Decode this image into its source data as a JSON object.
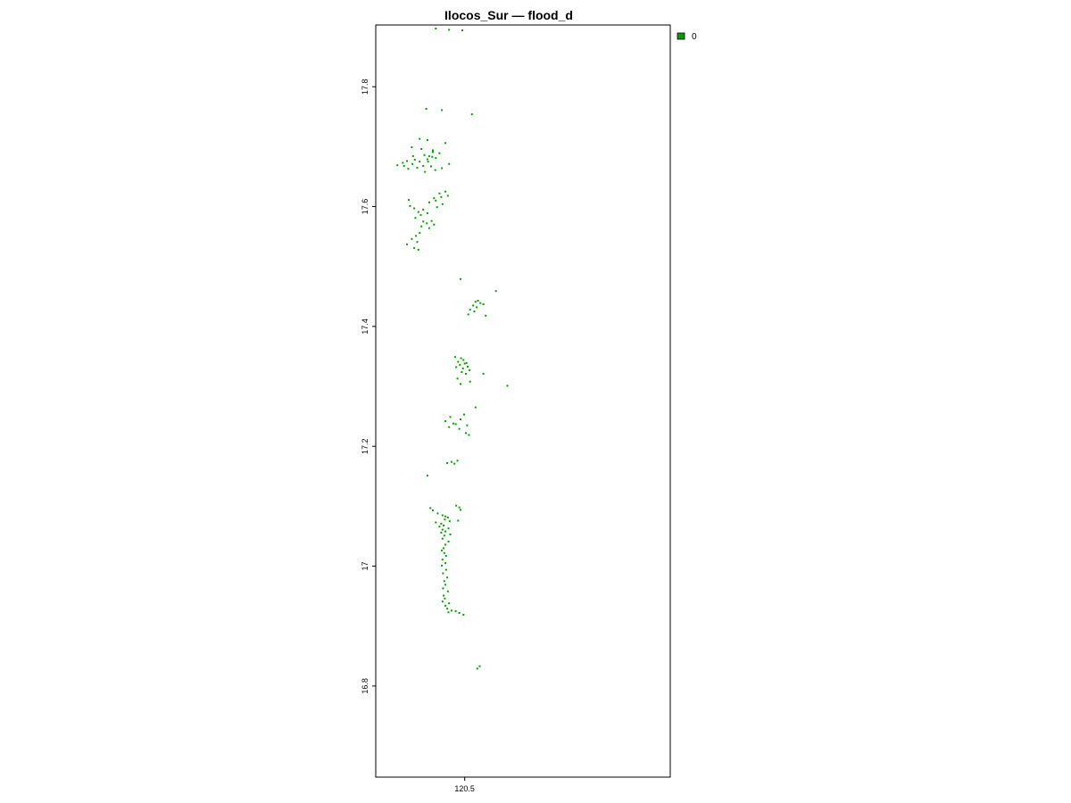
{
  "chart_data": {
    "type": "raster-map",
    "title": "Ilocos_Sur — flood_d",
    "xlabel": "",
    "ylabel": "",
    "x_ticks": [
      "120.5"
    ],
    "x_tick_values": [
      120.5
    ],
    "y_ticks": [
      "16.8",
      "17",
      "17.2",
      "17.4",
      "17.6",
      "17.8"
    ],
    "y_tick_values": [
      16.8,
      17.0,
      17.2,
      17.4,
      17.6,
      17.8
    ],
    "xlim": [
      120.352,
      120.842
    ],
    "ylim": [
      16.648,
      17.903
    ],
    "legend": {
      "position": "top-right",
      "entries": [
        {
          "label": "0",
          "color": "#00a000"
        }
      ]
    },
    "series": [
      {
        "name": "0",
        "color": "#00a000",
        "points": [
          [
            120.452,
            17.897
          ],
          [
            120.474,
            17.895
          ],
          [
            120.496,
            17.894
          ],
          [
            120.436,
            17.763
          ],
          [
            120.462,
            17.761
          ],
          [
            120.512,
            17.754
          ],
          [
            120.425,
            17.713
          ],
          [
            120.438,
            17.711
          ],
          [
            120.468,
            17.706
          ],
          [
            120.412,
            17.699
          ],
          [
            120.428,
            17.696
          ],
          [
            120.447,
            17.694
          ],
          [
            120.458,
            17.689
          ],
          [
            120.433,
            17.686
          ],
          [
            120.441,
            17.684
          ],
          [
            120.446,
            17.683
          ],
          [
            120.452,
            17.681
          ],
          [
            120.438,
            17.679
          ],
          [
            120.417,
            17.678
          ],
          [
            120.404,
            17.676
          ],
          [
            120.425,
            17.675
          ],
          [
            120.397,
            17.673
          ],
          [
            120.413,
            17.671
          ],
          [
            120.474,
            17.671
          ],
          [
            120.388,
            17.669
          ],
          [
            120.431,
            17.668
          ],
          [
            120.444,
            17.667
          ],
          [
            120.421,
            17.665
          ],
          [
            120.406,
            17.663
          ],
          [
            120.451,
            17.661
          ],
          [
            120.434,
            17.658
          ],
          [
            120.462,
            17.664
          ],
          [
            120.447,
            17.691
          ],
          [
            120.439,
            17.675
          ],
          [
            120.414,
            17.684
          ],
          [
            120.399,
            17.668
          ],
          [
            120.468,
            17.625
          ],
          [
            120.472,
            17.618
          ],
          [
            120.461,
            17.616
          ],
          [
            120.449,
            17.614
          ],
          [
            120.452,
            17.61
          ],
          [
            120.441,
            17.607
          ],
          [
            120.463,
            17.604
          ],
          [
            120.407,
            17.611
          ],
          [
            120.409,
            17.601
          ],
          [
            120.416,
            17.597
          ],
          [
            120.431,
            17.595
          ],
          [
            120.423,
            17.591
          ],
          [
            120.438,
            17.589
          ],
          [
            120.427,
            17.586
          ],
          [
            120.418,
            17.581
          ],
          [
            120.445,
            17.576
          ],
          [
            120.431,
            17.575
          ],
          [
            120.437,
            17.572
          ],
          [
            120.449,
            17.57
          ],
          [
            120.428,
            17.567
          ],
          [
            120.441,
            17.564
          ],
          [
            120.425,
            17.556
          ],
          [
            120.419,
            17.551
          ],
          [
            120.412,
            17.546
          ],
          [
            120.421,
            17.541
          ],
          [
            120.404,
            17.537
          ],
          [
            120.416,
            17.531
          ],
          [
            120.423,
            17.528
          ],
          [
            120.454,
            17.599
          ],
          [
            120.458,
            17.622
          ],
          [
            120.493,
            17.479
          ],
          [
            120.552,
            17.459
          ],
          [
            120.522,
            17.443
          ],
          [
            120.518,
            17.441
          ],
          [
            120.526,
            17.439
          ],
          [
            120.514,
            17.435
          ],
          [
            120.52,
            17.432
          ],
          [
            120.509,
            17.428
          ],
          [
            120.516,
            17.425
          ],
          [
            120.535,
            17.418
          ],
          [
            120.506,
            17.42
          ],
          [
            120.531,
            17.437
          ],
          [
            120.484,
            17.349
          ],
          [
            120.494,
            17.347
          ],
          [
            120.498,
            17.344
          ],
          [
            120.489,
            17.341
          ],
          [
            120.5,
            17.338
          ],
          [
            120.492,
            17.336
          ],
          [
            120.505,
            17.333
          ],
          [
            120.497,
            17.33
          ],
          [
            120.508,
            17.327
          ],
          [
            120.495,
            17.324
          ],
          [
            120.502,
            17.321
          ],
          [
            120.531,
            17.321
          ],
          [
            120.488,
            17.313
          ],
          [
            120.509,
            17.308
          ],
          [
            120.493,
            17.304
          ],
          [
            120.571,
            17.301
          ],
          [
            120.486,
            17.332
          ],
          [
            120.503,
            17.339
          ],
          [
            120.518,
            17.265
          ],
          [
            120.499,
            17.253
          ],
          [
            120.476,
            17.249
          ],
          [
            120.493,
            17.245
          ],
          [
            120.468,
            17.242
          ],
          [
            120.481,
            17.238
          ],
          [
            120.504,
            17.235
          ],
          [
            120.474,
            17.232
          ],
          [
            120.502,
            17.222
          ],
          [
            120.507,
            17.219
          ],
          [
            120.485,
            17.237
          ],
          [
            120.491,
            17.229
          ],
          [
            120.488,
            17.176
          ],
          [
            120.478,
            17.174
          ],
          [
            120.471,
            17.172
          ],
          [
            120.483,
            17.171
          ],
          [
            120.438,
            17.151
          ],
          [
            120.486,
            17.101
          ],
          [
            120.491,
            17.098
          ],
          [
            120.493,
            17.094
          ],
          [
            120.443,
            17.097
          ],
          [
            120.447,
            17.093
          ],
          [
            120.455,
            17.088
          ],
          [
            120.463,
            17.085
          ],
          [
            120.468,
            17.083
          ],
          [
            120.472,
            17.081
          ],
          [
            120.467,
            17.078
          ],
          [
            120.489,
            17.076
          ],
          [
            120.475,
            17.075
          ],
          [
            120.452,
            17.073
          ],
          [
            120.461,
            17.071
          ],
          [
            120.465,
            17.068
          ],
          [
            120.458,
            17.066
          ],
          [
            120.473,
            17.063
          ],
          [
            120.463,
            17.061
          ],
          [
            120.468,
            17.058
          ],
          [
            120.461,
            17.056
          ],
          [
            120.476,
            17.053
          ],
          [
            120.466,
            17.051
          ],
          [
            120.463,
            17.046
          ],
          [
            120.473,
            17.041
          ],
          [
            120.468,
            17.036
          ],
          [
            120.465,
            17.03
          ],
          [
            120.462,
            17.026
          ],
          [
            120.466,
            17.022
          ],
          [
            120.469,
            17.017
          ],
          [
            120.463,
            17.011
          ],
          [
            120.468,
            17.005
          ],
          [
            120.462,
            17.001
          ],
          [
            120.469,
            16.994
          ],
          [
            120.464,
            16.988
          ],
          [
            120.471,
            16.981
          ],
          [
            120.466,
            16.975
          ],
          [
            120.468,
            16.969
          ],
          [
            120.464,
            16.963
          ],
          [
            120.472,
            16.958
          ],
          [
            120.465,
            16.951
          ],
          [
            120.467,
            16.946
          ],
          [
            120.463,
            16.941
          ],
          [
            120.474,
            16.938
          ],
          [
            120.468,
            16.934
          ],
          [
            120.471,
            16.929
          ],
          [
            120.478,
            16.926
          ],
          [
            120.473,
            16.923
          ],
          [
            120.491,
            16.922
          ],
          [
            120.485,
            16.925
          ],
          [
            120.498,
            16.919
          ],
          [
            120.525,
            16.833
          ],
          [
            120.521,
            16.829
          ]
        ]
      }
    ]
  }
}
